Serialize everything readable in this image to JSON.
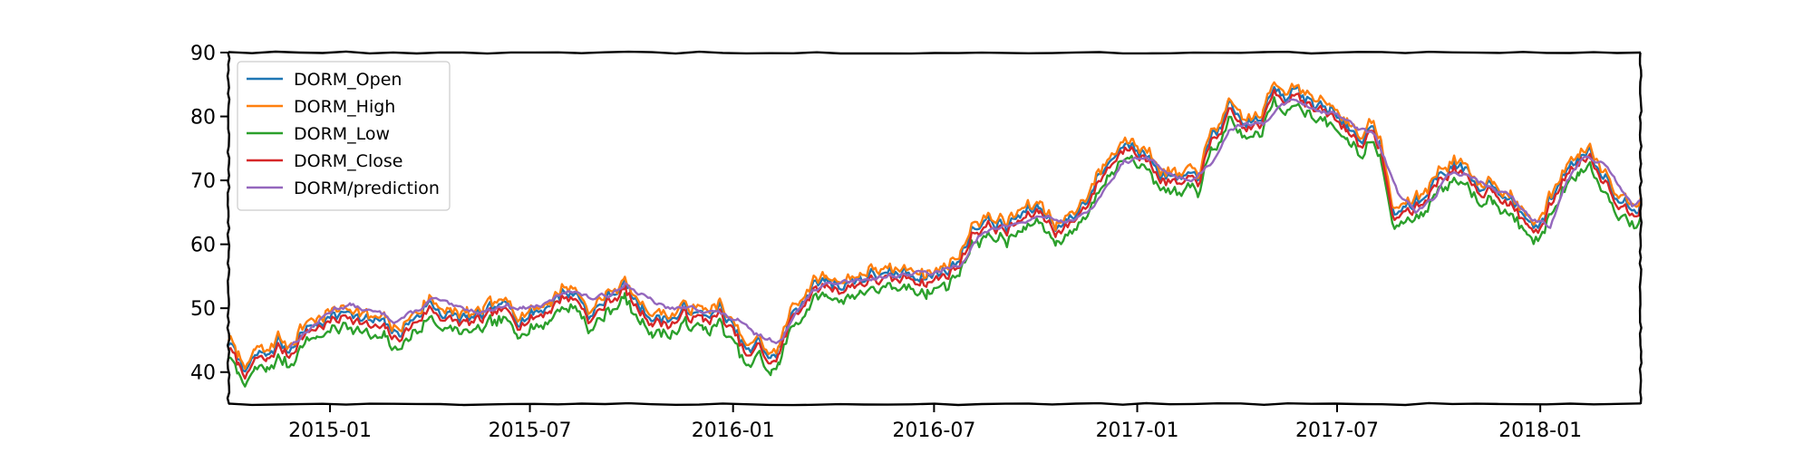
{
  "chart_data": {
    "type": "line",
    "title": "",
    "xlabel": "",
    "ylabel": "",
    "x_range": [
      "2014-10-01",
      "2018-04-02"
    ],
    "ylim": [
      35,
      90
    ],
    "x_ticks": [
      {
        "date": "2015-01-01",
        "label": "2015-01"
      },
      {
        "date": "2015-07-01",
        "label": "2015-07"
      },
      {
        "date": "2016-01-01",
        "label": "2016-01"
      },
      {
        "date": "2016-07-01",
        "label": "2016-07"
      },
      {
        "date": "2017-01-01",
        "label": "2017-01"
      },
      {
        "date": "2017-07-01",
        "label": "2017-07"
      },
      {
        "date": "2018-01-01",
        "label": "2018-01"
      }
    ],
    "y_ticks": [
      40,
      50,
      60,
      70,
      80,
      90
    ],
    "grid": false,
    "legend_position": "top-left",
    "close_anchors": [
      [
        "2014-10-01",
        44
      ],
      [
        "2014-10-10",
        41
      ],
      [
        "2014-10-20",
        39.5
      ],
      [
        "2014-10-25",
        42
      ],
      [
        "2014-11-05",
        41.5
      ],
      [
        "2014-11-15",
        44
      ],
      [
        "2014-11-25",
        42.5
      ],
      [
        "2014-12-05",
        45.5
      ],
      [
        "2014-12-20",
        47
      ],
      [
        "2015-01-05",
        48
      ],
      [
        "2015-01-20",
        49
      ],
      [
        "2015-02-05",
        47
      ],
      [
        "2015-02-20",
        46.5
      ],
      [
        "2015-03-01",
        45
      ],
      [
        "2015-03-15",
        47
      ],
      [
        "2015-04-01",
        50
      ],
      [
        "2015-04-20",
        48
      ],
      [
        "2015-05-05",
        47.5
      ],
      [
        "2015-05-20",
        48
      ],
      [
        "2015-06-05",
        49.5
      ],
      [
        "2015-06-20",
        48
      ],
      [
        "2015-07-05",
        48.5
      ],
      [
        "2015-07-20",
        50
      ],
      [
        "2015-08-01",
        52
      ],
      [
        "2015-08-15",
        51
      ],
      [
        "2015-08-25",
        48
      ],
      [
        "2015-09-10",
        51
      ],
      [
        "2015-09-25",
        53
      ],
      [
        "2015-10-05",
        50
      ],
      [
        "2015-10-20",
        48
      ],
      [
        "2015-11-05",
        47.5
      ],
      [
        "2015-11-20",
        49
      ],
      [
        "2015-12-05",
        48
      ],
      [
        "2015-12-20",
        49
      ],
      [
        "2016-01-05",
        45
      ],
      [
        "2016-01-15",
        42
      ],
      [
        "2016-01-25",
        44
      ],
      [
        "2016-02-05",
        41
      ],
      [
        "2016-02-12",
        43
      ],
      [
        "2016-02-25",
        49
      ],
      [
        "2016-03-10",
        52
      ],
      [
        "2016-03-25",
        53.5
      ],
      [
        "2016-04-10",
        53
      ],
      [
        "2016-04-25",
        54
      ],
      [
        "2016-05-10",
        54.5
      ],
      [
        "2016-05-25",
        54
      ],
      [
        "2016-06-10",
        55
      ],
      [
        "2016-06-25",
        54
      ],
      [
        "2016-07-10",
        55
      ],
      [
        "2016-07-25",
        57
      ],
      [
        "2016-08-05",
        62
      ],
      [
        "2016-08-20",
        63
      ],
      [
        "2016-09-05",
        62
      ],
      [
        "2016-09-20",
        64
      ],
      [
        "2016-10-05",
        65
      ],
      [
        "2016-10-20",
        62
      ],
      [
        "2016-11-01",
        63
      ],
      [
        "2016-11-15",
        66
      ],
      [
        "2016-12-01",
        71
      ],
      [
        "2016-12-15",
        74
      ],
      [
        "2016-12-28",
        76
      ],
      [
        "2017-01-10",
        73
      ],
      [
        "2017-01-25",
        70
      ],
      [
        "2017-02-10",
        69
      ],
      [
        "2017-02-25",
        70
      ],
      [
        "2017-03-10",
        76
      ],
      [
        "2017-03-25",
        80
      ],
      [
        "2017-04-10",
        78
      ],
      [
        "2017-04-25",
        79
      ],
      [
        "2017-05-05",
        84
      ],
      [
        "2017-05-15",
        83
      ],
      [
        "2017-05-25",
        84
      ],
      [
        "2017-06-10",
        81
      ],
      [
        "2017-06-25",
        80
      ],
      [
        "2017-07-10",
        78
      ],
      [
        "2017-07-20",
        76
      ],
      [
        "2017-08-01",
        77
      ],
      [
        "2017-08-10",
        75
      ],
      [
        "2017-08-20",
        64
      ],
      [
        "2017-09-01",
        65
      ],
      [
        "2017-09-15",
        66
      ],
      [
        "2017-10-01",
        70
      ],
      [
        "2017-10-15",
        72
      ],
      [
        "2017-10-25",
        70
      ],
      [
        "2017-11-05",
        68
      ],
      [
        "2017-11-20",
        69
      ],
      [
        "2017-12-05",
        66
      ],
      [
        "2017-12-20",
        63
      ],
      [
        "2018-01-01",
        62
      ],
      [
        "2018-01-15",
        68
      ],
      [
        "2018-01-25",
        71
      ],
      [
        "2018-02-05",
        73
      ],
      [
        "2018-02-15",
        74
      ],
      [
        "2018-02-25",
        71
      ],
      [
        "2018-03-05",
        69
      ],
      [
        "2018-03-15",
        66
      ],
      [
        "2018-03-25",
        65
      ],
      [
        "2018-04-02",
        66
      ]
    ],
    "prediction_anchors": [
      [
        "2014-11-25",
        44
      ],
      [
        "2014-12-15",
        47
      ],
      [
        "2015-01-05",
        50
      ],
      [
        "2015-01-20",
        50.5
      ],
      [
        "2015-02-05",
        49.5
      ],
      [
        "2015-02-20",
        49
      ],
      [
        "2015-03-01",
        48
      ],
      [
        "2015-03-20",
        49.5
      ],
      [
        "2015-04-05",
        51.5
      ],
      [
        "2015-04-25",
        50
      ],
      [
        "2015-05-20",
        49.5
      ],
      [
        "2015-06-10",
        50.5
      ],
      [
        "2015-06-25",
        50
      ],
      [
        "2015-07-15",
        50.5
      ],
      [
        "2015-08-05",
        53
      ],
      [
        "2015-08-25",
        51.5
      ],
      [
        "2015-09-10",
        52
      ],
      [
        "2015-09-25",
        54
      ],
      [
        "2015-10-10",
        52
      ],
      [
        "2015-11-01",
        50
      ],
      [
        "2015-11-25",
        50
      ],
      [
        "2015-12-15",
        49.5
      ],
      [
        "2016-01-05",
        48
      ],
      [
        "2016-01-20",
        46
      ],
      [
        "2016-02-05",
        45
      ],
      [
        "2016-02-15",
        45
      ],
      [
        "2016-02-28",
        50
      ],
      [
        "2016-03-15",
        53
      ],
      [
        "2016-04-05",
        54
      ],
      [
        "2016-04-25",
        54.5
      ],
      [
        "2016-05-20",
        55
      ],
      [
        "2016-06-15",
        55.5
      ],
      [
        "2016-07-05",
        55.5
      ],
      [
        "2016-07-25",
        57
      ],
      [
        "2016-08-10",
        61
      ],
      [
        "2016-08-25",
        62.5
      ],
      [
        "2016-09-20",
        63.5
      ],
      [
        "2016-10-10",
        64.5
      ],
      [
        "2016-10-25",
        63.5
      ],
      [
        "2016-11-15",
        64.5
      ],
      [
        "2016-12-01",
        68
      ],
      [
        "2016-12-20",
        73
      ],
      [
        "2017-01-10",
        73.5
      ],
      [
        "2017-01-30",
        71
      ],
      [
        "2017-02-20",
        70
      ],
      [
        "2017-03-10",
        73
      ],
      [
        "2017-03-25",
        78
      ],
      [
        "2017-04-10",
        79
      ],
      [
        "2017-04-25",
        78.5
      ],
      [
        "2017-05-10",
        82
      ],
      [
        "2017-05-25",
        82.5
      ],
      [
        "2017-06-15",
        81
      ],
      [
        "2017-07-05",
        80
      ],
      [
        "2017-07-20",
        78
      ],
      [
        "2017-08-05",
        77
      ],
      [
        "2017-08-25",
        68
      ],
      [
        "2017-09-10",
        65
      ],
      [
        "2017-09-25",
        67
      ],
      [
        "2017-10-10",
        71
      ],
      [
        "2017-10-25",
        71
      ],
      [
        "2017-11-15",
        69
      ],
      [
        "2017-12-05",
        67.5
      ],
      [
        "2017-12-25",
        64
      ],
      [
        "2018-01-10",
        63
      ],
      [
        "2018-01-25",
        70
      ],
      [
        "2018-02-10",
        74
      ],
      [
        "2018-02-25",
        73
      ],
      [
        "2018-03-10",
        70
      ],
      [
        "2018-03-25",
        66
      ],
      [
        "2018-04-02",
        67
      ]
    ],
    "series": [
      {
        "name": "DORM_Open",
        "color": "#1f77b4",
        "base": "close",
        "offset": 0.4
      },
      {
        "name": "DORM_High",
        "color": "#ff7f0e",
        "base": "close",
        "offset": 1.1
      },
      {
        "name": "DORM_Low",
        "color": "#2ca02c",
        "base": "close",
        "offset": -1.1
      },
      {
        "name": "DORM_Close",
        "color": "#d62728",
        "base": "close",
        "offset": 0
      },
      {
        "name": "DORM/prediction",
        "color": "#9467bd",
        "base": "prediction",
        "offset": 0
      }
    ]
  }
}
